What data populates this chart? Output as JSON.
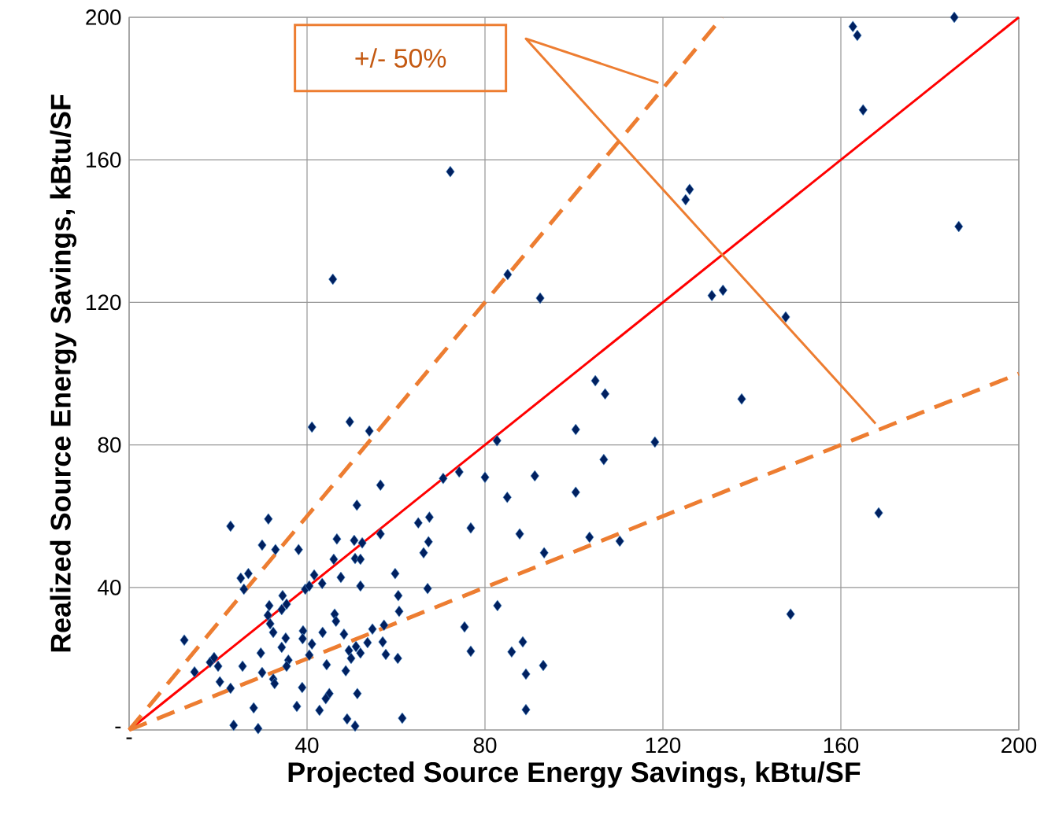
{
  "chart_data": {
    "type": "scatter",
    "xlabel": "Projected Source Energy Savings, kBtu/SF",
    "ylabel": "Realized Source Energy Savings, kBtu/SF",
    "xlim": [
      0,
      200
    ],
    "ylim": [
      0,
      200
    ],
    "xticks": [
      {
        "value": 0,
        "label": "-"
      },
      40,
      80,
      120,
      160,
      200
    ],
    "yticks": [
      {
        "value": 0,
        "label": "-"
      },
      40,
      80,
      120,
      160,
      200
    ],
    "grid": true,
    "annotations": [
      "+/- 50%"
    ],
    "series": [
      {
        "marker": "diamond",
        "color": "#002060",
        "x": [
          162.7,
          163.7,
          185.5,
          165,
          186.5,
          148.7,
          168.5,
          147.6,
          137.7,
          131,
          133.5,
          125.1,
          126,
          118.2,
          106.7,
          107,
          104.8,
          100.4,
          100.4,
          103.5,
          110.3,
          92.4,
          85.1,
          72.2,
          45.8,
          41.1,
          49.6,
          54.0,
          82.7,
          74.2,
          70.6,
          80,
          91.2,
          85,
          87.8,
          93.3,
          93.1,
          89.2,
          89.2,
          86,
          88.5,
          82.8,
          76.8,
          75.4,
          76.8,
          61.4,
          56.5,
          51.2,
          22.8,
          31.3,
          29.9,
          32.9,
          38.1,
          46.7,
          50.6,
          52.4,
          65,
          56.5,
          46,
          50.8,
          52,
          25.1,
          26.8,
          25.8,
          59.8,
          41.6,
          43.4,
          47.6,
          52,
          39.6,
          40.5,
          34.5,
          35.4,
          34.3,
          31.5,
          31.2,
          31.7,
          32.4,
          60.5,
          60.7,
          46.2,
          46.5,
          48.3,
          43.5,
          39.1,
          39,
          35.2,
          41.1,
          34.3,
          12.4,
          18.2,
          19.1,
          20,
          14.7,
          29.6,
          25.5,
          20.4,
          22.8,
          28,
          23.5,
          29,
          35.8,
          35.4,
          29.9,
          32.4,
          32.7,
          40.5,
          44.4,
          48.7,
          54.7,
          57.3,
          53.6,
          57,
          49.4,
          51,
          52,
          49.9,
          57.7,
          60.4,
          38.9,
          45,
          44.2,
          51.3,
          37.7,
          42.8,
          49,
          50.8,
          67.5,
          67.3,
          66.2,
          67.1
        ],
        "values": [
          197.4,
          194.9,
          200,
          174,
          141.3,
          32.5,
          60.9,
          115.9,
          92.9,
          121.9,
          123.4,
          148.8,
          151.7,
          80.8,
          75.9,
          94.3,
          98,
          84.3,
          66.7,
          54.1,
          53,
          121.2,
          127.8,
          156.7,
          126.5,
          85,
          86.5,
          83.9,
          81.2,
          72.4,
          70.6,
          70.9,
          71.3,
          65.3,
          55,
          49.7,
          18.1,
          15.7,
          5.7,
          21.9,
          24.7,
          34.9,
          56.7,
          28.9,
          22.1,
          3.3,
          68.7,
          63.1,
          57.2,
          59.2,
          51.9,
          50.6,
          50.6,
          53.6,
          53.2,
          52.5,
          58.1,
          55,
          47.9,
          48.1,
          47.9,
          42.6,
          43.9,
          39.5,
          43.9,
          43.5,
          41.1,
          42.8,
          40.4,
          39.5,
          40.4,
          37.7,
          35.3,
          33.8,
          34.9,
          32.2,
          29.8,
          27.4,
          37.7,
          33.3,
          32.5,
          30.5,
          26.9,
          27.4,
          27.8,
          25.6,
          25.8,
          24.1,
          23.2,
          25.2,
          19,
          20.3,
          17.9,
          16.3,
          21.6,
          17.9,
          13.5,
          11.7,
          6.2,
          1.3,
          0.4,
          19.6,
          17.9,
          16.1,
          14.3,
          13,
          21,
          18.3,
          16.6,
          28.3,
          29.4,
          24.5,
          24.7,
          22.3,
          23.4,
          21.6,
          20.1,
          21.2,
          20.1,
          11.9,
          10.2,
          8.8,
          10.2,
          6.6,
          5.5,
          3.1,
          1.1,
          59.7,
          52.8,
          49.7,
          39.7
        ]
      },
      {
        "type": "line",
        "marker": "none",
        "color": "#ff0000",
        "line_style": "solid",
        "x": [
          0,
          200
        ],
        "values": [
          0,
          200
        ]
      },
      {
        "type": "line",
        "marker": "none",
        "color": "#ed7d31",
        "line_style": "dashed",
        "x": [
          0,
          133.3
        ],
        "values": [
          0,
          200
        ]
      },
      {
        "type": "line",
        "marker": "none",
        "color": "#ed7d31",
        "line_style": "dashed",
        "x": [
          0,
          200
        ],
        "values": [
          0,
          100
        ]
      }
    ]
  }
}
